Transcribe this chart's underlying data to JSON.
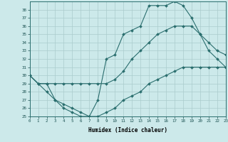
{
  "title": "",
  "xlabel": "Humidex (Indice chaleur)",
  "xlim": [
    0,
    23
  ],
  "ylim": [
    25,
    39
  ],
  "xticks": [
    0,
    1,
    2,
    3,
    4,
    5,
    6,
    7,
    8,
    9,
    10,
    11,
    12,
    13,
    14,
    15,
    16,
    17,
    18,
    19,
    20,
    21,
    22,
    23
  ],
  "yticks": [
    25,
    26,
    27,
    28,
    29,
    30,
    31,
    32,
    33,
    34,
    35,
    36,
    37,
    38
  ],
  "bg_color": "#cce9ea",
  "line_color": "#2a6e6e",
  "grid_color": "#aacccc",
  "line1_x": [
    0,
    1,
    2,
    3,
    4,
    5,
    6,
    7,
    8,
    9,
    10,
    11,
    12,
    13,
    14,
    15,
    16,
    17,
    18,
    19,
    20,
    21,
    22,
    23
  ],
  "line1_y": [
    30,
    29,
    29,
    27,
    26,
    25.5,
    25,
    25,
    27,
    32,
    32.5,
    35,
    35.5,
    36,
    38.5,
    38.5,
    38.5,
    39,
    38.5,
    37,
    35,
    33,
    32,
    31
  ],
  "line2_x": [
    0,
    1,
    2,
    3,
    4,
    5,
    6,
    7,
    8,
    9,
    10,
    11,
    12,
    13,
    14,
    15,
    16,
    17,
    18,
    19,
    20,
    21,
    22,
    23
  ],
  "line2_y": [
    30,
    29,
    29,
    29,
    29,
    29,
    29,
    29,
    29,
    29,
    29.5,
    30.5,
    32,
    33,
    34,
    35,
    35.5,
    36,
    36,
    36,
    35,
    34,
    33,
    32.5
  ],
  "line3_x": [
    0,
    1,
    2,
    3,
    4,
    5,
    6,
    7,
    8,
    9,
    10,
    11,
    12,
    13,
    14,
    15,
    16,
    17,
    18,
    19,
    20,
    21,
    22,
    23
  ],
  "line3_y": [
    30,
    29,
    28,
    27,
    26.5,
    26,
    25.5,
    25,
    25,
    25.5,
    26,
    27,
    27.5,
    28,
    29,
    29.5,
    30,
    30.5,
    31,
    31,
    31,
    31,
    31,
    31
  ]
}
